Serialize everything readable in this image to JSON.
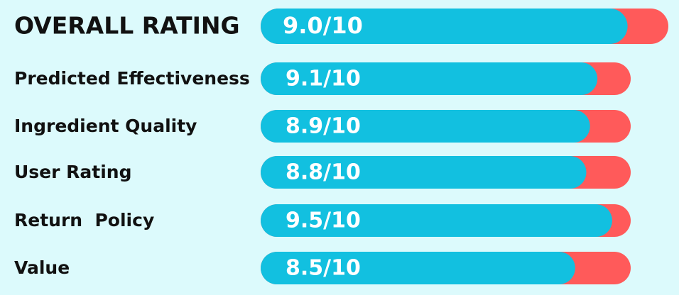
{
  "chart_data": {
    "type": "bar",
    "orientation": "horizontal",
    "categories": [
      "OVERALL RATING",
      "Predicted Effectiveness",
      "Ingredient Quality",
      "User Rating",
      "Return  Policy",
      "Value"
    ],
    "values": [
      9.0,
      9.1,
      8.9,
      8.8,
      9.5,
      8.5
    ],
    "value_labels": [
      "9.0/10",
      "9.1/10",
      "8.9/10",
      "8.8/10",
      "9.5/10",
      "8.5/10"
    ],
    "xlim": [
      0,
      10
    ],
    "color": "#12c0e0",
    "track_color": "#ff5a5a",
    "background": "#dcfafc"
  }
}
